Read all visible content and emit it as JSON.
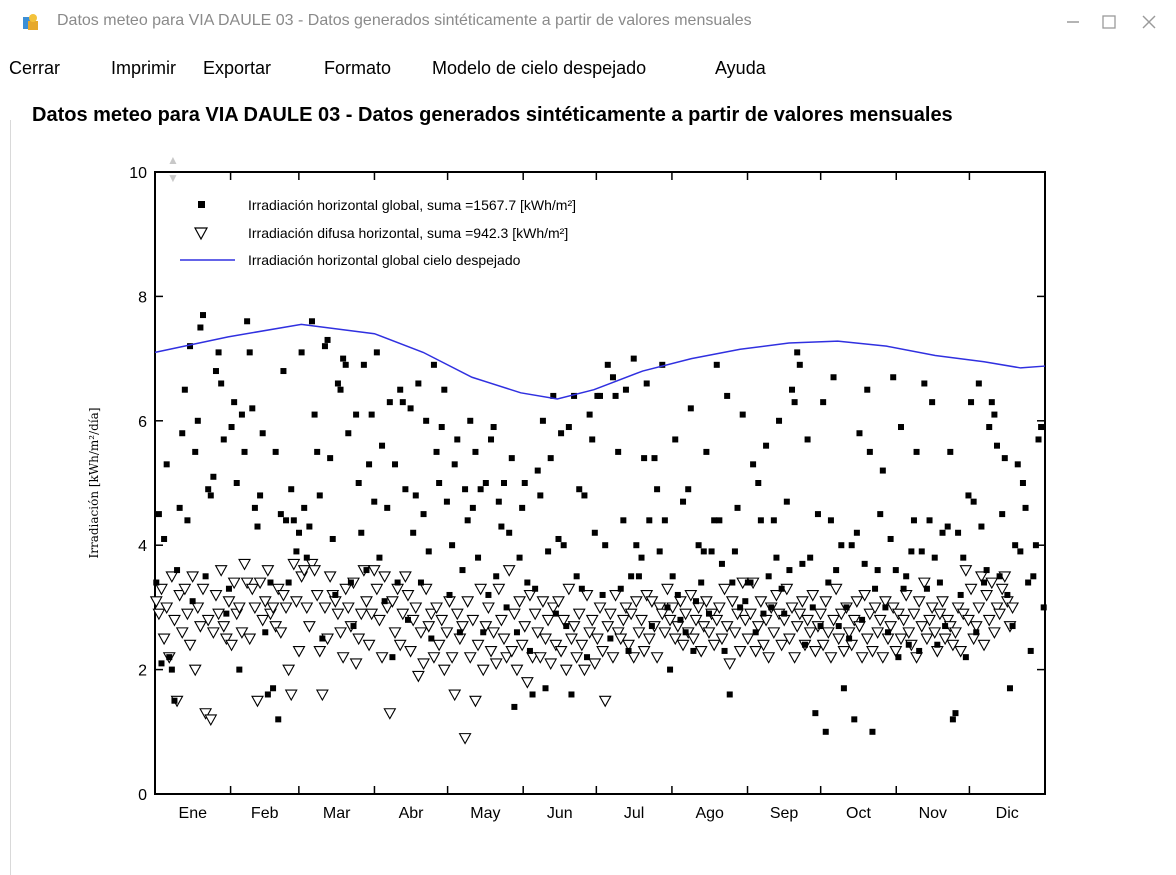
{
  "window": {
    "title": "Datos meteo para VIA DAULE 03 - Datos generados sintéticamente a partir de valores mensuales",
    "icon": "app-icon",
    "controls": [
      "minimize-icon",
      "maximize-icon",
      "close-icon"
    ]
  },
  "menu": {
    "items": [
      "Cerrar",
      "Imprimir",
      "Exportar",
      "Formato",
      "Modelo de cielo despejado",
      "Ayuda"
    ]
  },
  "page": {
    "title": "Datos meteo para VIA DAULE 03 - Datos generados sintéticamente a partir de valores mensuales"
  },
  "colors": {
    "clear_sky_line": "#3030e0",
    "global_marker": "#000000",
    "diffuse_marker": "#000000"
  },
  "chart_data": {
    "type": "scatter",
    "ylabel": "Irradiación [kWh/m²/día]",
    "xlabel": "",
    "ylim": [
      0,
      10
    ],
    "yticks": [
      0,
      2,
      4,
      6,
      8,
      10
    ],
    "xlim": [
      0,
      365
    ],
    "months": [
      "Ene",
      "Feb",
      "Mar",
      "Abr",
      "May",
      "Jun",
      "Jul",
      "Ago",
      "Sep",
      "Oct",
      "Nov",
      "Dic"
    ],
    "legend_position": "top-left",
    "series": [
      {
        "name": "Irradiación horizontal global, suma =1567.7 [kWh/m²]",
        "marker": "filled-square",
        "values": [
          3.4,
          4.5,
          2.1,
          4.1,
          5.3,
          2.2,
          2.0,
          1.5,
          3.6,
          4.6,
          5.8,
          6.5,
          4.4,
          7.2,
          3.1,
          5.5,
          6.0,
          7.5,
          7.7,
          3.5,
          4.9,
          4.8,
          5.1,
          6.8,
          7.1,
          6.6,
          5.7,
          2.9,
          3.3,
          5.9,
          6.3,
          5.0,
          2.0,
          6.1,
          5.5,
          7.6,
          7.1,
          6.2,
          4.6,
          4.3,
          4.8,
          5.8,
          2.6,
          1.6,
          3.4,
          1.7,
          5.5,
          1.2,
          4.5,
          6.8,
          4.4,
          3.4,
          4.9,
          4.4,
          3.9,
          4.2,
          7.1,
          4.6,
          3.8,
          4.3,
          7.6,
          6.1,
          5.5,
          4.8,
          2.5,
          7.2,
          7.3,
          5.4,
          4.1,
          3.2,
          6.6,
          6.5,
          7.0,
          6.9,
          5.8,
          3.4,
          2.7,
          6.1,
          5.0,
          4.2,
          6.9,
          3.6,
          5.3,
          6.1,
          4.7,
          7.1,
          3.8,
          5.6,
          3.1,
          4.6,
          6.3,
          2.2,
          5.3,
          3.4,
          6.5,
          6.3,
          4.9,
          2.8,
          6.2,
          4.2,
          4.8,
          6.6,
          3.4,
          4.5,
          6.0,
          3.9,
          2.5,
          6.9,
          5.5,
          5.0,
          5.9,
          6.5,
          4.7,
          3.2,
          4.0,
          5.3,
          5.7,
          2.6,
          3.6,
          4.9,
          4.4,
          6.0,
          4.6,
          5.5,
          3.8,
          4.9,
          2.6,
          5.0,
          3.2,
          5.7,
          5.9,
          3.5,
          4.7,
          4.3,
          5.0,
          3.0,
          4.2,
          5.4,
          1.4,
          2.6,
          3.8,
          4.6,
          5.0,
          3.4,
          2.3,
          1.6,
          3.3,
          5.2,
          4.8,
          6.0,
          1.7,
          3.9,
          5.4,
          6.4,
          2.9,
          4.1,
          5.8,
          4.0,
          2.7,
          5.9,
          1.6,
          6.4,
          3.5,
          4.9,
          3.3,
          4.8,
          2.2,
          6.1,
          5.7,
          4.2,
          6.4,
          6.4,
          3.2,
          4.0,
          6.9,
          2.5,
          6.7,
          6.4,
          5.5,
          3.3,
          4.4,
          6.5,
          2.3,
          3.5,
          7.0,
          4.0,
          3.5,
          3.8,
          5.4,
          6.6,
          4.4,
          2.7,
          5.4,
          4.9,
          3.9,
          6.9,
          4.4,
          3.0,
          2.0,
          3.5,
          5.7,
          3.2,
          2.8,
          4.7,
          2.6,
          4.9,
          6.2,
          2.3,
          3.1,
          4.0,
          3.4,
          3.9,
          5.5,
          2.9,
          3.9,
          4.4,
          6.9,
          4.4,
          3.7,
          2.3,
          6.4,
          1.6,
          3.4,
          3.9,
          4.6,
          3.0,
          6.1,
          3.1,
          3.4,
          3.4,
          5.3,
          2.6,
          5.0,
          4.4,
          2.9,
          5.6,
          3.5,
          3.0,
          4.4,
          3.8,
          6.0,
          3.3,
          2.9,
          4.7,
          3.6,
          6.5,
          6.3,
          7.1,
          6.9,
          3.7,
          2.4,
          5.7,
          3.8,
          3.0,
          1.3,
          4.5,
          2.7,
          6.3,
          1.0,
          3.4,
          4.4,
          6.7,
          3.6,
          2.7,
          4.0,
          1.7,
          3.0,
          2.5,
          4.0,
          1.2,
          4.2,
          5.8,
          2.8,
          3.7,
          6.5,
          5.5,
          1.0,
          3.3,
          3.6,
          4.5,
          5.2,
          3.0,
          2.6,
          4.1,
          6.7,
          3.6,
          2.2,
          5.9,
          3.3,
          3.5,
          2.4,
          3.9,
          4.4,
          5.5,
          2.3,
          3.9,
          6.6,
          3.3,
          4.4,
          6.3,
          3.8,
          2.4,
          3.4,
          4.2,
          2.7,
          4.3,
          5.5,
          1.2,
          1.3,
          4.2,
          3.2,
          3.8,
          2.2,
          4.8,
          6.3,
          4.7,
          2.6,
          6.6,
          4.3,
          3.4,
          3.6,
          5.9,
          6.3,
          6.1,
          5.6,
          3.5,
          4.5,
          5.4,
          3.2,
          1.7,
          2.7,
          4.0,
          5.3,
          3.9,
          5.0,
          4.6,
          3.4,
          2.3,
          3.5,
          4.0,
          5.7,
          5.9,
          3.0
        ]
      },
      {
        "name": "Irradiación difusa horizontal, suma =942.3 [kWh/m²]",
        "marker": "open-triangle",
        "values": [
          3.1,
          2.9,
          3.3,
          2.5,
          3.0,
          2.2,
          3.5,
          2.8,
          1.5,
          3.2,
          2.6,
          3.3,
          2.9,
          2.4,
          3.5,
          2.0,
          3.0,
          2.7,
          3.3,
          1.3,
          2.8,
          1.2,
          2.6,
          3.2,
          2.9,
          3.6,
          2.7,
          2.5,
          3.1,
          2.4,
          3.4,
          2.9,
          3.0,
          2.6,
          3.7,
          3.4,
          2.5,
          3.3,
          3.0,
          1.5,
          3.4,
          2.8,
          3.1,
          3.6,
          2.9,
          3.0,
          2.7,
          3.3,
          2.6,
          3.2,
          3.0,
          2.0,
          1.6,
          3.7,
          3.1,
          2.3,
          3.5,
          3.6,
          3.0,
          2.7,
          3.7,
          3.6,
          3.2,
          2.3,
          1.6,
          3.0,
          2.5,
          3.5,
          3.2,
          3.1,
          2.9,
          2.6,
          2.2,
          3.3,
          3.0,
          2.7,
          3.4,
          2.1,
          2.5,
          2.9,
          3.6,
          3.1,
          2.4,
          2.9,
          3.6,
          3.3,
          2.8,
          2.2,
          3.5,
          3.0,
          1.3,
          3.1,
          2.6,
          3.3,
          2.4,
          2.9,
          3.5,
          3.2,
          2.3,
          2.8,
          3.0,
          1.9,
          2.6,
          2.1,
          3.3,
          2.7,
          2.9,
          2.2,
          3.0,
          2.4,
          2.8,
          2.0,
          2.6,
          3.1,
          2.2,
          1.6,
          2.9,
          2.5,
          2.7,
          0.9,
          3.1,
          2.2,
          2.8,
          1.5,
          2.4,
          3.3,
          2.0,
          2.7,
          3.0,
          2.3,
          2.6,
          2.1,
          3.3,
          2.8,
          2.5,
          2.2,
          3.6,
          2.3,
          2.9,
          2.0,
          3.1,
          2.4,
          2.7,
          1.8,
          3.2,
          2.2,
          2.9,
          2.6,
          2.2,
          3.1,
          2.5,
          2.8,
          2.1,
          3.0,
          2.4,
          3.1,
          2.3,
          2.8,
          2.0,
          3.3,
          2.5,
          2.7,
          2.2,
          2.9,
          2.4,
          2.0,
          3.2,
          2.6,
          2.8,
          2.1,
          2.5,
          3.0,
          2.3,
          1.5,
          2.7,
          2.9,
          2.2,
          3.2,
          2.6,
          2.5,
          2.8,
          3.0,
          2.4,
          2.9,
          2.2,
          3.1,
          2.6,
          2.8,
          2.3,
          3.2,
          2.5,
          3.1,
          2.7,
          2.2,
          3.0,
          2.9,
          2.6,
          3.3,
          2.8,
          3.0,
          2.5,
          2.7,
          3.1,
          2.4,
          2.9,
          2.6,
          3.2,
          2.5,
          2.8,
          3.0,
          2.3,
          2.7,
          3.1,
          2.6,
          2.9,
          2.4,
          2.8,
          3.0,
          2.5,
          3.3,
          2.7,
          2.1,
          3.1,
          2.6,
          2.9,
          2.3,
          3.4,
          2.8,
          2.5,
          2.9,
          3.4,
          2.3,
          2.7,
          3.1,
          2.4,
          2.8,
          2.2,
          3.0,
          2.6,
          3.2,
          2.9,
          2.4,
          2.8,
          3.3,
          2.5,
          3.0,
          2.2,
          2.7,
          2.9,
          3.1,
          2.4,
          2.8,
          2.6,
          3.2,
          2.3,
          2.7,
          2.9,
          2.4,
          3.1,
          2.6,
          2.2,
          2.8,
          3.3,
          2.5,
          2.9,
          2.3,
          3.0,
          2.6,
          2.4,
          2.8,
          3.1,
          2.7,
          2.2,
          3.2,
          2.5,
          2.9,
          2.3,
          3.0,
          2.6,
          2.8,
          2.2,
          3.1,
          2.5,
          2.7,
          3.0,
          2.3,
          2.9,
          2.5,
          2.8,
          3.2,
          2.6,
          2.4,
          2.9,
          2.2,
          3.1,
          2.7,
          3.4,
          2.5,
          2.8,
          3.0,
          2.6,
          2.3,
          2.9,
          3.1,
          2.5,
          2.8,
          2.7,
          2.4,
          2.6,
          3.0,
          2.3,
          2.9,
          3.6,
          2.8,
          3.3,
          2.5,
          2.7,
          3.0,
          3.5,
          2.4,
          3.2,
          2.8,
          3.4,
          2.6,
          3.0,
          2.9,
          3.3,
          3.5,
          3.1,
          2.7,
          3.0
        ]
      },
      {
        "name": "Irradiación horizontal global cielo despejado",
        "marker": "line",
        "x": [
          0,
          30,
          60,
          90,
          110,
          130,
          150,
          165,
          180,
          200,
          220,
          240,
          260,
          280,
          300,
          320,
          340,
          355,
          365
        ],
        "values": [
          7.1,
          7.35,
          7.55,
          7.4,
          7.1,
          6.7,
          6.45,
          6.35,
          6.5,
          6.8,
          7.0,
          7.15,
          7.25,
          7.28,
          7.2,
          7.05,
          6.95,
          6.85,
          6.88
        ]
      }
    ]
  }
}
